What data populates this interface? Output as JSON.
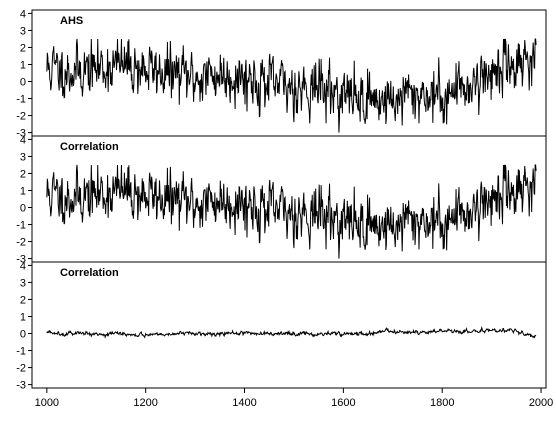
{
  "chart_data": {
    "type": "line",
    "x_range": [
      1000,
      1990
    ],
    "xlim": [
      970,
      2010
    ],
    "x_ticks": [
      1000,
      1200,
      1400,
      1600,
      1800,
      2000
    ],
    "ylim": [
      -3.2,
      4.2
    ],
    "y_ticks": [
      -3,
      -2,
      -1,
      0,
      1,
      2,
      3,
      4
    ],
    "line_color": "#000000",
    "panels": [
      {
        "title": "AHS",
        "kind": "noisy",
        "trend_x": [
          1000,
          1050,
          1100,
          1150,
          1200,
          1250,
          1300,
          1350,
          1400,
          1450,
          1500,
          1550,
          1600,
          1650,
          1700,
          1750,
          1800,
          1850,
          1900,
          1950,
          1990
        ],
        "trend_y": [
          0.8,
          0.6,
          0.8,
          1.0,
          0.7,
          0.5,
          0.2,
          0.4,
          0.3,
          -0.2,
          -0.3,
          -0.3,
          -0.8,
          -1.0,
          -1.1,
          -0.7,
          -0.9,
          -0.2,
          0.5,
          1.2,
          1.5
        ],
        "noise_sd": 0.75,
        "seed": 11
      },
      {
        "title": "Correlation",
        "kind": "noisy",
        "trend_x": [
          1000,
          1050,
          1100,
          1150,
          1200,
          1250,
          1300,
          1350,
          1400,
          1450,
          1500,
          1550,
          1600,
          1650,
          1700,
          1750,
          1800,
          1850,
          1900,
          1950,
          1990
        ],
        "trend_y": [
          0.8,
          0.6,
          0.8,
          1.0,
          0.7,
          0.5,
          0.2,
          0.4,
          0.3,
          -0.2,
          -0.3,
          -0.3,
          -0.8,
          -1.0,
          -1.1,
          -0.7,
          -0.9,
          -0.2,
          0.5,
          1.2,
          1.5
        ],
        "noise_sd": 0.75,
        "seed": 11
      },
      {
        "title": "Correlation",
        "kind": "flat",
        "trend_x": [
          1000,
          1100,
          1200,
          1300,
          1400,
          1500,
          1600,
          1650,
          1690,
          1700,
          1750,
          1800,
          1850,
          1900,
          1950,
          1990
        ],
        "trend_y": [
          0.05,
          0.0,
          -0.05,
          0.0,
          0.0,
          0.0,
          0.0,
          -0.05,
          0.25,
          0.05,
          0.05,
          0.1,
          0.1,
          0.2,
          0.15,
          -0.2
        ],
        "noise_sd": 0.05,
        "seed": 5
      }
    ]
  }
}
